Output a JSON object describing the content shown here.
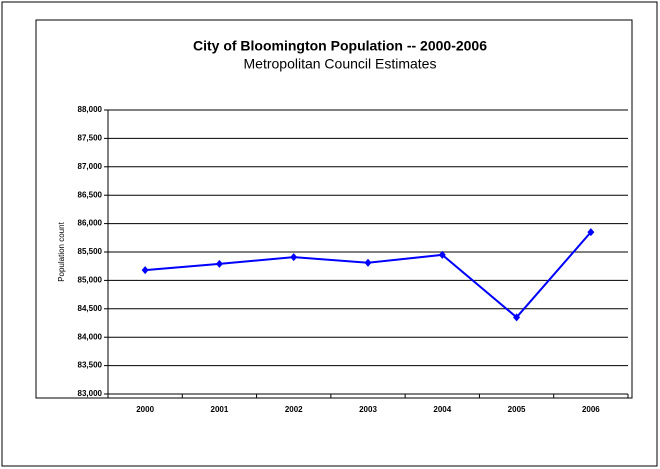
{
  "chart_data": {
    "type": "line",
    "title": "City of Bloomington Population -- 2000-2006",
    "subtitle": "Metropolitan Council Estimates",
    "y_label": "Population count",
    "categories": [
      "2000",
      "2001",
      "2002",
      "2003",
      "2004",
      "2005",
      "2006"
    ],
    "series": [
      {
        "name": "Population",
        "color": "#0000ff",
        "values": [
          85180,
          85290,
          85410,
          85310,
          85450,
          84350,
          85850
        ]
      }
    ],
    "ylim": [
      83000,
      88000
    ],
    "yticks": [
      {
        "value": 83000,
        "label": "83,000"
      },
      {
        "value": 83500,
        "label": "83,500"
      },
      {
        "value": 84000,
        "label": "84,000"
      },
      {
        "value": 84500,
        "label": "84,500"
      },
      {
        "value": 85000,
        "label": "85,000"
      },
      {
        "value": 85500,
        "label": "85,500"
      },
      {
        "value": 86000,
        "label": "86,000"
      },
      {
        "value": 86500,
        "label": "86,500"
      },
      {
        "value": 87000,
        "label": "87,000"
      },
      {
        "value": 87500,
        "label": "87,500"
      },
      {
        "value": 88000,
        "label": "88,000"
      }
    ],
    "grid": true
  }
}
